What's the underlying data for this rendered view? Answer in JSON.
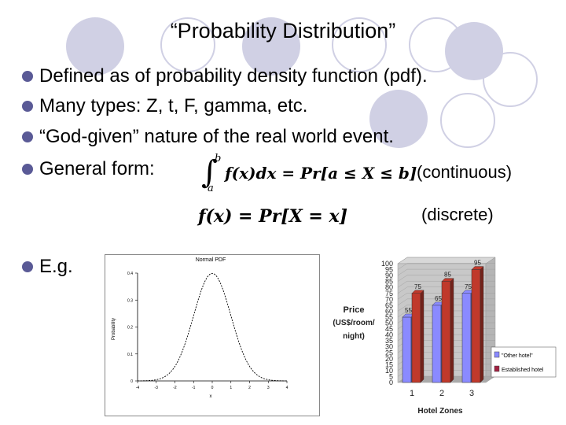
{
  "slide": {
    "title": "“Probability Distribution”",
    "bullets": [
      "Defined as of probability density function (pdf).",
      "Many types: Z, t, F, gamma, etc.",
      "“God-given” nature of the real world event.",
      "General form:",
      "E.g."
    ],
    "continuous_label": "(continuous)",
    "discrete_label": "(discrete)"
  },
  "formulas": {
    "integral_upper": "b",
    "integral_lower": "a",
    "continuous_text": "f(x)dx = Pr[a ≤ X ≤ b]",
    "discrete_text": "f(x) = Pr[X = x]"
  },
  "chart_data": [
    {
      "type": "line",
      "title": "Normal PDF",
      "xlabel": "x",
      "ylabel": "Probability",
      "x_ticks": [
        "-4",
        "-3",
        "-2",
        "-1",
        "0",
        "1",
        "2",
        "3",
        "4"
      ],
      "y_ticks": [
        "0",
        "0.1",
        "0.2",
        "0.3",
        "0.4"
      ],
      "xlim": [
        -4,
        4
      ],
      "ylim": [
        0,
        0.4
      ],
      "curve": "standard normal density, peak 0.399 at x = 0"
    },
    {
      "type": "bar",
      "title": "",
      "xlabel": "Hotel Zones",
      "ylabel": "Price (US$/room/night)",
      "categories": [
        "1",
        "2",
        "3"
      ],
      "y_ticks": [
        "0",
        "5",
        "10",
        "15",
        "20",
        "25",
        "30",
        "35",
        "40",
        "45",
        "50",
        "55",
        "60",
        "65",
        "70",
        "75",
        "80",
        "85",
        "90",
        "95",
        "100"
      ],
      "ylim": [
        0,
        100
      ],
      "series": [
        {
          "name": "\"Other hotel\"",
          "values": [
            55,
            65,
            75
          ],
          "color": "#8a8aff"
        },
        {
          "name": "Established hotel",
          "values": [
            75,
            85,
            95
          ],
          "color": "#c0392b"
        }
      ]
    }
  ]
}
